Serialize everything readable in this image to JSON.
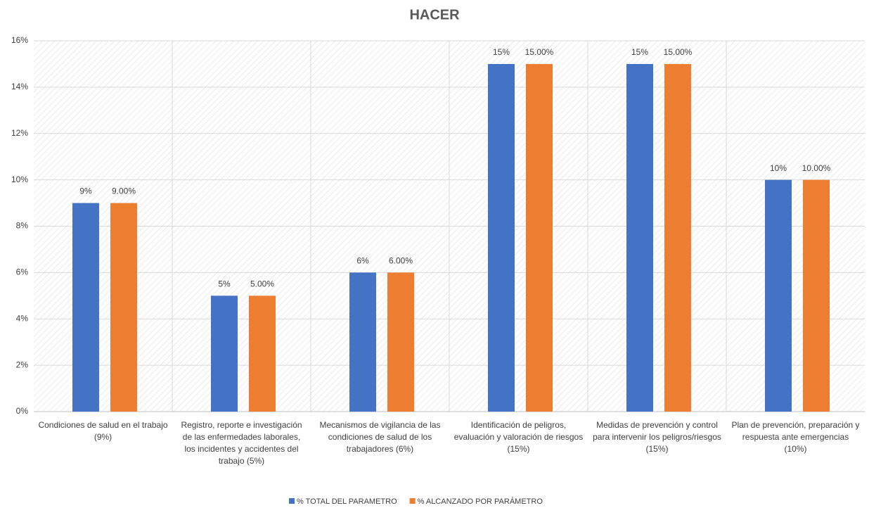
{
  "chart_data": {
    "type": "bar",
    "title": "HACER",
    "categories": [
      "Condiciones de salud en el trabajo (9%)",
      "Registro, reporte e investigación de las enfermedades laborales, los incidentes y accidentes del trabajo (5%)",
      "Mecanismos de vigilancia de las condiciones de salud de los trabajadores (6%)",
      "Identificación de peligros, evaluación y valoración de riesgos (15%)",
      "Medidas de prevención y control para intervenir los peligros/riesgos (15%)",
      "Plan de prevención, preparación y respuesta ante emergencias (10%)"
    ],
    "series": [
      {
        "name": "% TOTAL DEL PARAMETRO",
        "color": "#4472c4",
        "values": [
          9,
          5,
          6,
          15,
          15,
          10
        ],
        "value_labels": [
          "9%",
          "5%",
          "6%",
          "15%",
          "15%",
          "10%"
        ]
      },
      {
        "name": "% ALCANZADO POR PARÁMETRO",
        "color": "#ed7d31",
        "values": [
          9,
          5,
          6,
          15,
          15,
          10
        ],
        "value_labels": [
          "9.00%",
          "5.00%",
          "6.00%",
          "15.00%",
          "15.00%",
          "10.00%"
        ]
      }
    ],
    "ylim": [
      0,
      16
    ],
    "yticks": [
      {
        "value": 0,
        "label": "0%"
      },
      {
        "value": 2,
        "label": "2%"
      },
      {
        "value": 4,
        "label": "4%"
      },
      {
        "value": 6,
        "label": "6%"
      },
      {
        "value": 8,
        "label": "8%"
      },
      {
        "value": 10,
        "label": "10%"
      },
      {
        "value": 12,
        "label": "12%"
      },
      {
        "value": 14,
        "label": "14%"
      },
      {
        "value": 16,
        "label": "16%"
      }
    ],
    "grid": true,
    "legend": "bottom"
  }
}
